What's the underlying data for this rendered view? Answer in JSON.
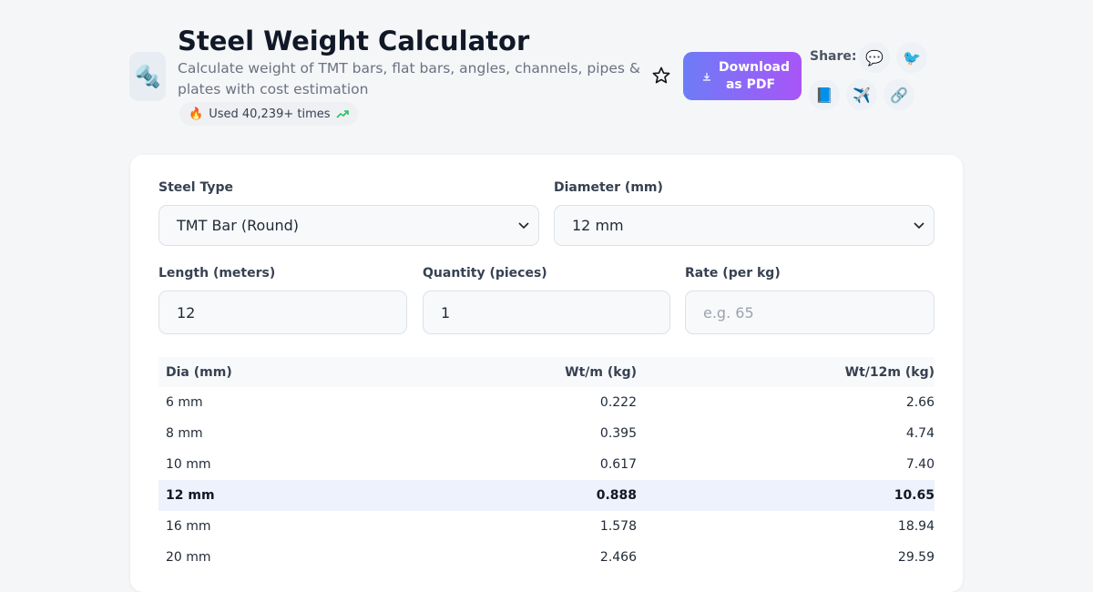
{
  "header": {
    "icon": "🔩",
    "title": "Steel Weight Calculator",
    "subtitle": "Calculate weight of TMT bars, flat bars, angles, channels, pipes & plates with cost estimation",
    "usage_icon": "🔥",
    "usage": "Used 40,239+ times"
  },
  "actions": {
    "download": "Download as PDF",
    "share_label": "Share:",
    "share_icons": [
      "💬",
      "🐦",
      "📘",
      "✈️",
      "🔗"
    ]
  },
  "form": {
    "fields": [
      {
        "label": "Steel Type",
        "value": "TMT Bar (Round)"
      },
      {
        "label": "Diameter (mm)",
        "value": "12 mm"
      },
      {
        "label": "Length (meters)",
        "value": "12"
      },
      {
        "label": "Quantity (pieces)",
        "value": "1"
      },
      {
        "label": "Rate (per kg)",
        "placeholder": "e.g. 65"
      }
    ]
  },
  "table": {
    "columns": [
      "Dia (mm)",
      "Wt/m (kg)",
      "Wt/12m (kg)"
    ],
    "rows": [
      [
        "6 mm",
        "0.222",
        "2.66"
      ],
      [
        "8 mm",
        "0.395",
        "4.74"
      ],
      [
        "10 mm",
        "0.617",
        "7.40"
      ],
      [
        "12 mm",
        "0.888",
        "10.65"
      ],
      [
        "16 mm",
        "1.578",
        "18.94"
      ],
      [
        "20 mm",
        "2.466",
        "29.59"
      ]
    ],
    "selected_row": 3
  }
}
